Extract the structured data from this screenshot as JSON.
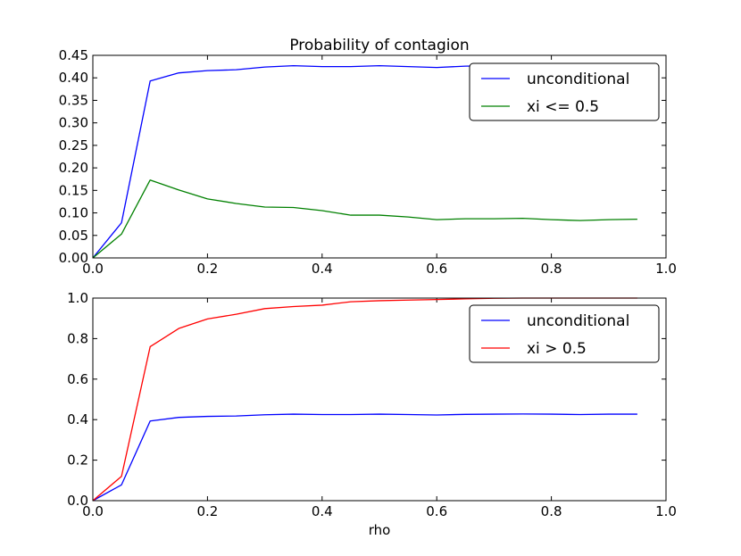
{
  "chart_data": [
    {
      "type": "line",
      "title": "Probability of contagion",
      "xlabel": "",
      "ylabel": "",
      "xlim": [
        0.0,
        1.0
      ],
      "ylim": [
        0.0,
        0.45
      ],
      "xticks": [
        "0.0",
        "0.2",
        "0.4",
        "0.6",
        "0.8",
        "1.0"
      ],
      "yticks": [
        "0.00",
        "0.05",
        "0.10",
        "0.15",
        "0.20",
        "0.25",
        "0.30",
        "0.35",
        "0.40",
        "0.45"
      ],
      "legend_position": "top-right",
      "grid": false,
      "x": [
        0.0,
        0.05,
        0.1,
        0.15,
        0.2,
        0.25,
        0.3,
        0.35,
        0.4,
        0.45,
        0.5,
        0.55,
        0.6,
        0.65,
        0.7,
        0.75,
        0.8,
        0.85,
        0.9,
        0.95
      ],
      "series": [
        {
          "name": "unconditional",
          "color": "#0000ff",
          "values": [
            0.0,
            0.078,
            0.393,
            0.411,
            0.416,
            0.418,
            0.424,
            0.427,
            0.425,
            0.425,
            0.427,
            0.425,
            0.423,
            0.426,
            0.427,
            0.428,
            0.427,
            0.425,
            0.427,
            0.427
          ]
        },
        {
          "name": "xi <= 0.5",
          "color": "#008000",
          "values": [
            0.0,
            0.053,
            0.173,
            0.151,
            0.131,
            0.121,
            0.113,
            0.112,
            0.105,
            0.095,
            0.095,
            0.091,
            0.085,
            0.087,
            0.087,
            0.088,
            0.085,
            0.083,
            0.085,
            0.086
          ]
        }
      ]
    },
    {
      "type": "line",
      "title": "",
      "xlabel": "rho",
      "ylabel": "",
      "xlim": [
        0.0,
        1.0
      ],
      "ylim": [
        0.0,
        1.0
      ],
      "xticks": [
        "0.0",
        "0.2",
        "0.4",
        "0.6",
        "0.8",
        "1.0"
      ],
      "yticks": [
        "0.0",
        "0.2",
        "0.4",
        "0.6",
        "0.8",
        "1.0"
      ],
      "legend_position": "top-right",
      "grid": false,
      "x": [
        0.0,
        0.05,
        0.1,
        0.15,
        0.2,
        0.25,
        0.3,
        0.35,
        0.4,
        0.45,
        0.5,
        0.55,
        0.6,
        0.65,
        0.7,
        0.75,
        0.8,
        0.85,
        0.9,
        0.95
      ],
      "series": [
        {
          "name": "unconditional",
          "color": "#0000ff",
          "values": [
            0.0,
            0.078,
            0.393,
            0.411,
            0.416,
            0.418,
            0.424,
            0.427,
            0.425,
            0.425,
            0.427,
            0.425,
            0.423,
            0.426,
            0.427,
            0.428,
            0.427,
            0.425,
            0.427,
            0.427
          ]
        },
        {
          "name": "xi > 0.5",
          "color": "#ff0000",
          "values": [
            0.0,
            0.12,
            0.76,
            0.85,
            0.897,
            0.92,
            0.948,
            0.958,
            0.965,
            0.982,
            0.987,
            0.99,
            0.993,
            0.996,
            0.999,
            1.0,
            1.0,
            1.0,
            1.0,
            1.0
          ]
        }
      ]
    }
  ]
}
